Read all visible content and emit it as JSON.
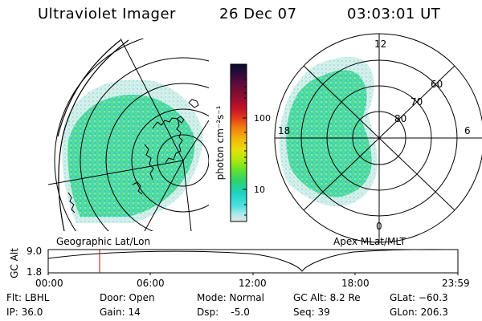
{
  "header": {
    "instrument": "Ultraviolet Imager",
    "date": "26 Dec 07",
    "time": "03:03:01 UT"
  },
  "left_panel": {
    "caption": "Geographic Lat/Lon"
  },
  "right_panel": {
    "caption": "Apex MLat/MLT",
    "mlt_labels": [
      "12",
      "18",
      "6",
      "0"
    ],
    "mlat_labels": [
      "60",
      "70",
      "80"
    ]
  },
  "colorbar": {
    "unit_label": "photon cm⁻²s⁻¹",
    "tick_labels": [
      "100",
      "10"
    ],
    "colors": [
      "#0a0a2a",
      "#2b0b3a",
      "#5b0b3f",
      "#8a0f2e",
      "#c1122a",
      "#e03a1a",
      "#f07a12",
      "#f2b20c",
      "#eadd0c",
      "#b8e80c",
      "#66e22b",
      "#2ed36a",
      "#1dd3c2",
      "#4de0e0",
      "#a8eaea",
      "#e6e6e6"
    ]
  },
  "gc_alt_plot": {
    "ylabel": "GC Alt",
    "y_ticks": [
      "9.0",
      "1.8"
    ],
    "x_ticks": [
      "00:00",
      "06:00",
      "12:00",
      "18:00",
      "23:59"
    ],
    "marker_color": "#d40000"
  },
  "info": {
    "flt": "Flt: LBHL",
    "ip": "IP: 36.0",
    "door": "Door: Open",
    "gain": "Gain: 14",
    "mode": "Mode: Normal",
    "dsp": "Dsp:    -5.0",
    "gc_alt": "GC Alt: 8.2 Re",
    "seq": "Seq: 39",
    "glat": "GLat: −60.3",
    "glon": "GLon: 206.3"
  }
}
